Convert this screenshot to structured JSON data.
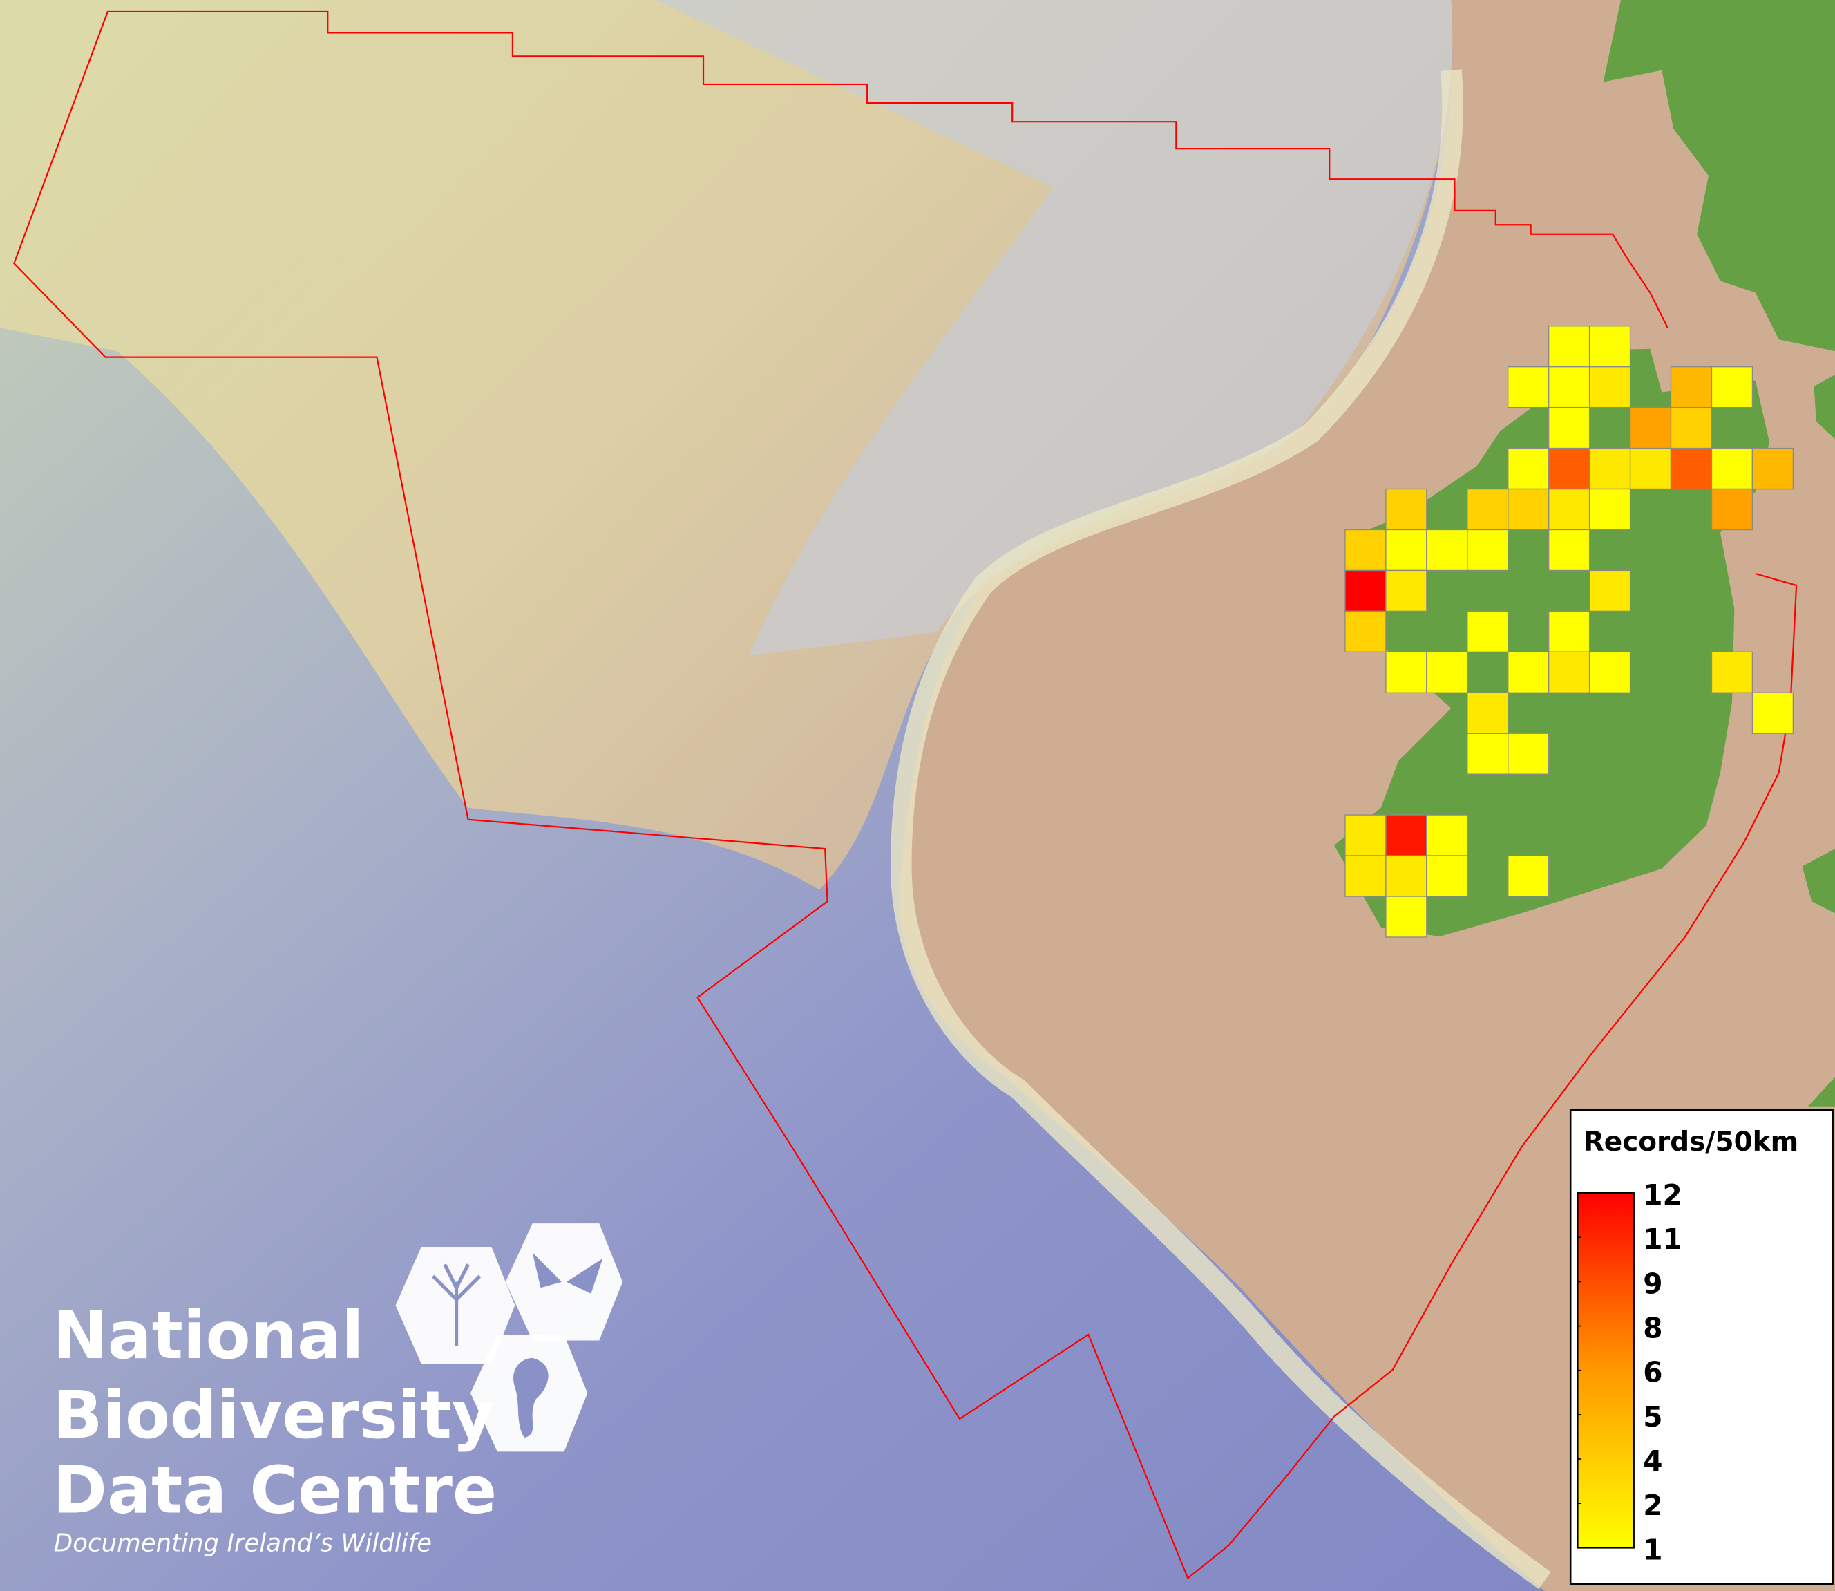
{
  "legend": {
    "title": "Records/50km",
    "ticks": [
      "12",
      "11",
      "9",
      "8",
      "6",
      "5",
      "4",
      "2",
      "1"
    ],
    "min": 1,
    "max": 12,
    "color_low": "#ffff00",
    "color_high": "#ff0000"
  },
  "logo": {
    "line1": "National",
    "line2": "Biodiversity",
    "line3": "Data Centre",
    "tagline": "Documenting Ireland’s Wildlife",
    "icons": [
      "tree-icon",
      "butterfly-icon",
      "seahorse-icon"
    ]
  },
  "map": {
    "boundary_color": "#ff0000",
    "land_color": "#66a045",
    "grid_cells": [
      {
        "row": 0,
        "col": 5,
        "value": 1
      },
      {
        "row": 0,
        "col": 6,
        "value": 1
      },
      {
        "row": 1,
        "col": 4,
        "value": 1
      },
      {
        "row": 1,
        "col": 5,
        "value": 1
      },
      {
        "row": 1,
        "col": 6,
        "value": 2
      },
      {
        "row": 1,
        "col": 8,
        "value": 4
      },
      {
        "row": 1,
        "col": 9,
        "value": 1
      },
      {
        "row": 2,
        "col": 5,
        "value": 1
      },
      {
        "row": 2,
        "col": 7,
        "value": 5
      },
      {
        "row": 2,
        "col": 8,
        "value": 3
      },
      {
        "row": 3,
        "col": 4,
        "value": 1
      },
      {
        "row": 3,
        "col": 5,
        "value": 8
      },
      {
        "row": 3,
        "col": 6,
        "value": 2
      },
      {
        "row": 3,
        "col": 7,
        "value": 2
      },
      {
        "row": 3,
        "col": 8,
        "value": 8
      },
      {
        "row": 3,
        "col": 9,
        "value": 1
      },
      {
        "row": 3,
        "col": 10,
        "value": 4
      },
      {
        "row": 4,
        "col": 1,
        "value": 3
      },
      {
        "row": 4,
        "col": 3,
        "value": 3
      },
      {
        "row": 4,
        "col": 4,
        "value": 3
      },
      {
        "row": 4,
        "col": 5,
        "value": 2
      },
      {
        "row": 4,
        "col": 6,
        "value": 1
      },
      {
        "row": 4,
        "col": 9,
        "value": 5
      },
      {
        "row": 5,
        "col": 0,
        "value": 3
      },
      {
        "row": 5,
        "col": 1,
        "value": 1
      },
      {
        "row": 5,
        "col": 2,
        "value": 1
      },
      {
        "row": 5,
        "col": 3,
        "value": 1
      },
      {
        "row": 5,
        "col": 5,
        "value": 1
      },
      {
        "row": 6,
        "col": 0,
        "value": 12
      },
      {
        "row": 6,
        "col": 1,
        "value": 2
      },
      {
        "row": 6,
        "col": 6,
        "value": 2
      },
      {
        "row": 7,
        "col": 0,
        "value": 3
      },
      {
        "row": 7,
        "col": 3,
        "value": 1
      },
      {
        "row": 7,
        "col": 5,
        "value": 1
      },
      {
        "row": 8,
        "col": 1,
        "value": 1
      },
      {
        "row": 8,
        "col": 2,
        "value": 1
      },
      {
        "row": 8,
        "col": 4,
        "value": 1
      },
      {
        "row": 8,
        "col": 5,
        "value": 2
      },
      {
        "row": 8,
        "col": 6,
        "value": 1
      },
      {
        "row": 8,
        "col": 9,
        "value": 2
      },
      {
        "row": 9,
        "col": 3,
        "value": 2
      },
      {
        "row": 9,
        "col": 10,
        "value": 1
      },
      {
        "row": 10,
        "col": 3,
        "value": 1
      },
      {
        "row": 10,
        "col": 4,
        "value": 1
      },
      {
        "row": 12,
        "col": 0,
        "value": 2
      },
      {
        "row": 12,
        "col": 1,
        "value": 11
      },
      {
        "row": 12,
        "col": 2,
        "value": 1
      },
      {
        "row": 13,
        "col": 0,
        "value": 2
      },
      {
        "row": 13,
        "col": 1,
        "value": 2
      },
      {
        "row": 13,
        "col": 2,
        "value": 1
      },
      {
        "row": 13,
        "col": 4,
        "value": 1
      },
      {
        "row": 14,
        "col": 1,
        "value": 1
      }
    ]
  }
}
